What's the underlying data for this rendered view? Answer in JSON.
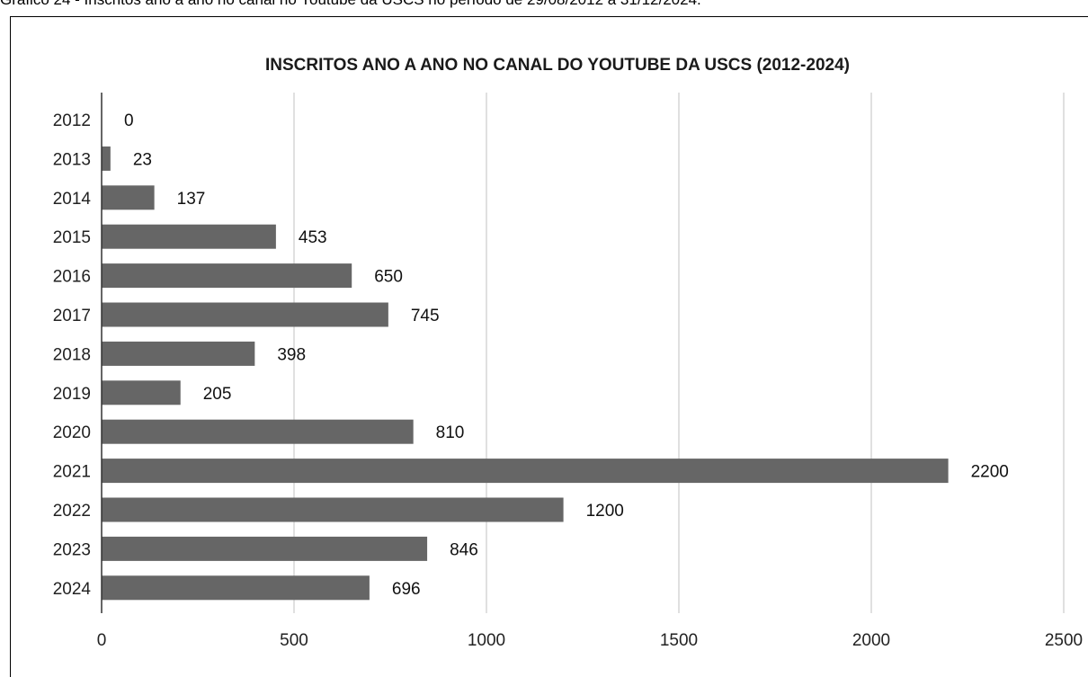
{
  "caption": "Gráfico 24 - Inscritos ano a ano no canal no Youtube da USCS no período de 29/08/2012 a 31/12/2024.",
  "chart_data": {
    "type": "bar",
    "orientation": "horizontal",
    "title": "INSCRITOS ANO A ANO NO CANAL DO YOUTUBE DA USCS (2012-2024)",
    "xlabel": "",
    "ylabel": "",
    "categories": [
      "2012",
      "2013",
      "2014",
      "2015",
      "2016",
      "2017",
      "2018",
      "2019",
      "2020",
      "2021",
      "2022",
      "2023",
      "2024"
    ],
    "values": [
      0,
      23,
      137,
      453,
      650,
      745,
      398,
      205,
      810,
      2200,
      1200,
      846,
      696
    ],
    "xlim": [
      0,
      2500
    ],
    "ticks": [
      0,
      500,
      1000,
      1500,
      2000,
      2500
    ],
    "tick_labels": [
      "0",
      "500",
      "1000",
      "1500",
      "2000",
      "2500"
    ],
    "data_labels": [
      "0",
      "23",
      "137",
      "453",
      "650",
      "745",
      "398",
      "205",
      "810",
      "2200",
      "1200",
      "846",
      "696"
    ],
    "grid": "vertical",
    "legend": "none",
    "colors": {
      "bar": "#666666",
      "grid": "#cccccc",
      "axis": "#333333"
    }
  }
}
